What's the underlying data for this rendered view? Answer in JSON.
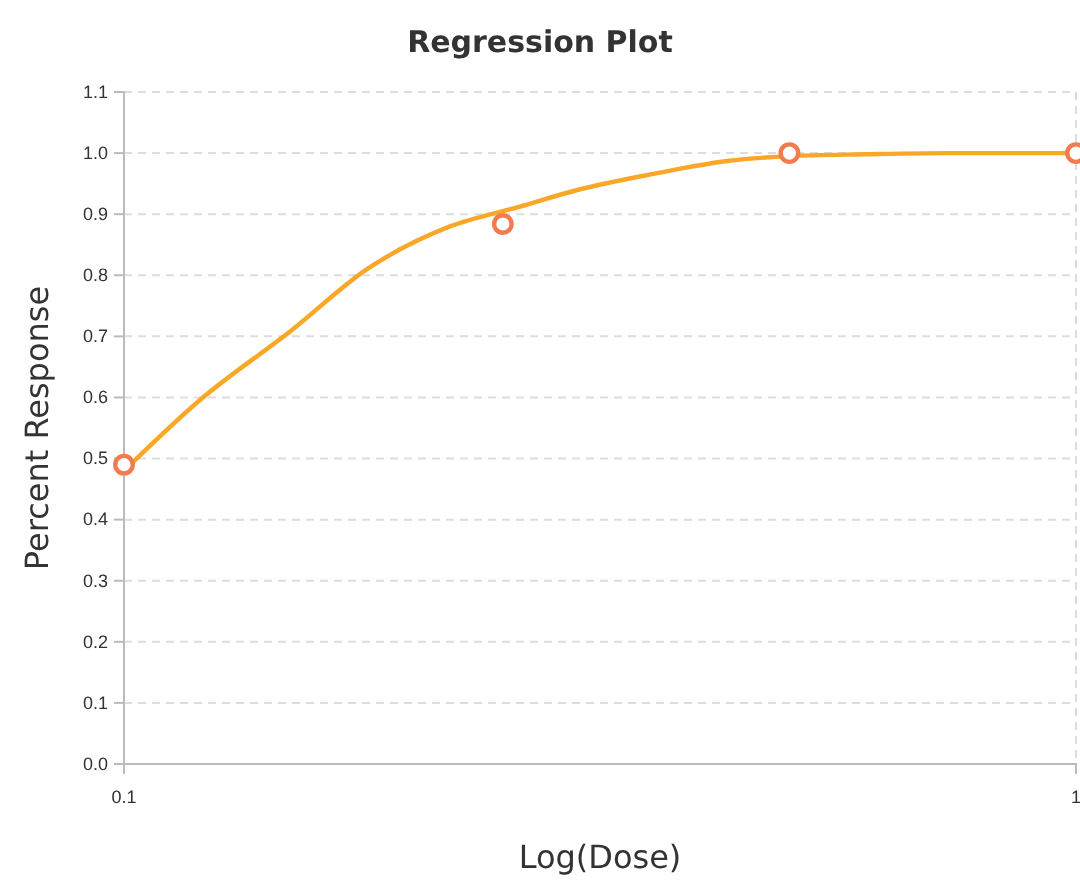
{
  "chart_data": {
    "type": "scatter",
    "title": "Regression Plot",
    "xlabel": "Log(Dose)",
    "ylabel": "Percent Response",
    "log": "x",
    "grid": true,
    "xlim": [
      0.1,
      1
    ],
    "xticks": [
      0.1,
      1
    ],
    "ylim": [
      0,
      1.1
    ],
    "yticks": [
      {
        "value": 0,
        "label": "0.0"
      },
      0.1,
      0.2,
      0.3,
      0.4,
      0.5,
      0.6,
      0.7,
      0.8,
      0.9,
      {
        "value": 1,
        "label": "1.0"
      },
      1.1
    ],
    "series": [
      {
        "type": "line",
        "color": "#f9a727",
        "marker": "none",
        "line_style": "solid",
        "x": [
          0.1,
          0.12,
          0.15,
          0.18,
          0.22,
          0.26,
          0.3,
          0.36,
          0.43,
          0.5,
          0.6,
          0.73,
          0.85,
          1
        ],
        "values": [
          0.48,
          0.595,
          0.71,
          0.81,
          0.88,
          0.912,
          0.94,
          0.966,
          0.987,
          0.995,
          0.998,
          1.0,
          1.0,
          1.0
        ]
      },
      {
        "color": "#f47a50",
        "marker": "circle",
        "x": [
          0.1,
          0.25,
          0.5,
          1
        ],
        "values": [
          0.49,
          0.884,
          1.0,
          1.0
        ]
      }
    ]
  }
}
